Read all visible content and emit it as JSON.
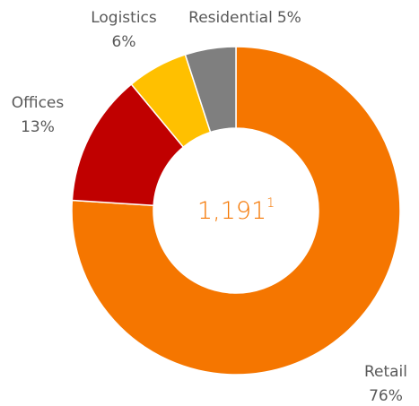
{
  "chart_data": {
    "type": "donut",
    "categories": [
      "Retail",
      "Offices",
      "Logistics",
      "Residential"
    ],
    "values": [
      76,
      13,
      6,
      5
    ],
    "value_labels": [
      "76%",
      "13%",
      "6%",
      "5%"
    ],
    "colors": [
      "#f57600",
      "#c00000",
      "#ffc000",
      "#7f7f7f"
    ],
    "center_label": "1,191",
    "center_footnote": "1"
  }
}
